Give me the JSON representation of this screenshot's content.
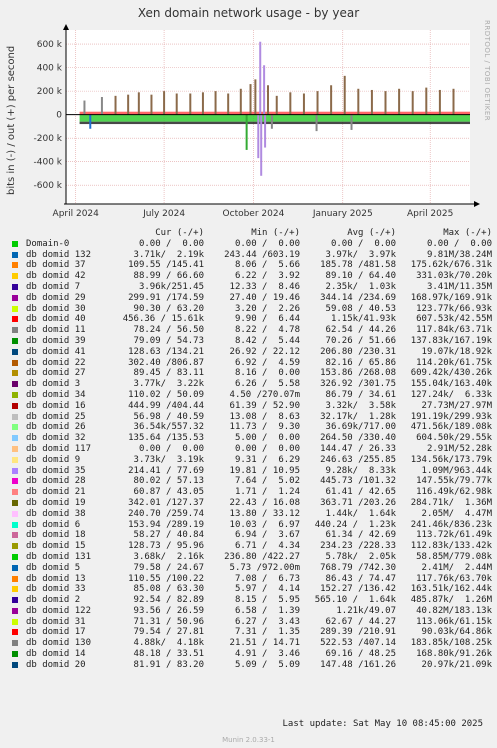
{
  "title": "Xen domain network usage - by year",
  "side_label": "RRDTOOL / TOBI OETIKER",
  "footer": {
    "last_update": "Last update:  Sat May 10 08:45:00 2025",
    "munin": "Munin 2.0.33-1"
  },
  "legend_header": {
    "cur": "Cur (-/+)",
    "min": "Min (-/+)",
    "avg": "Avg (-/+)",
    "max": "Max (-/+)"
  },
  "chart_data": {
    "type": "area",
    "ylabel": "bits in (-) / out (+) per second",
    "yticks": [
      {
        "value": 600000,
        "label": "600 k"
      },
      {
        "value": 400000,
        "label": "400 k"
      },
      {
        "value": 200000,
        "label": "200 k"
      },
      {
        "value": 0,
        "label": "0"
      },
      {
        "value": -200000,
        "label": "-200 k"
      },
      {
        "value": -400000,
        "label": "-400 k"
      },
      {
        "value": -600000,
        "label": "-600 k"
      }
    ],
    "ylim": [
      -760000,
      720000
    ],
    "xticks": [
      {
        "value": "2024-04-01",
        "label": "April 2024"
      },
      {
        "value": "2024-07-01",
        "label": "July 2024"
      },
      {
        "value": "2024-10-01",
        "label": "October 2024"
      },
      {
        "value": "2025-01-01",
        "label": "January 2025"
      },
      {
        "value": "2025-04-01",
        "label": "April 2025"
      }
    ],
    "xlim": [
      "2024-03-22",
      "2025-05-12"
    ],
    "grid": true,
    "spikes_out": [
      {
        "date": "2024-04-10",
        "value": 120000,
        "color": "#888888"
      },
      {
        "date": "2024-04-28",
        "value": 150000,
        "color": "#888888"
      },
      {
        "date": "2024-05-12",
        "value": 160000,
        "color": "#8b6a4a"
      },
      {
        "date": "2024-05-25",
        "value": 170000,
        "color": "#8b6a4a"
      },
      {
        "date": "2024-06-05",
        "value": 190000,
        "color": "#8b6a4a"
      },
      {
        "date": "2024-06-18",
        "value": 170000,
        "color": "#8b6a4a"
      },
      {
        "date": "2024-07-01",
        "value": 200000,
        "color": "#8b6a4a"
      },
      {
        "date": "2024-07-14",
        "value": 180000,
        "color": "#8b6a4a"
      },
      {
        "date": "2024-07-28",
        "value": 180000,
        "color": "#8b6a4a"
      },
      {
        "date": "2024-08-10",
        "value": 190000,
        "color": "#8b6a4a"
      },
      {
        "date": "2024-08-23",
        "value": 200000,
        "color": "#8b6a4a"
      },
      {
        "date": "2024-09-05",
        "value": 180000,
        "color": "#8b6a4a"
      },
      {
        "date": "2024-09-18",
        "value": 220000,
        "color": "#8b6a4a"
      },
      {
        "date": "2024-09-28",
        "value": 260000,
        "color": "#8b6a4a"
      },
      {
        "date": "2024-10-03",
        "value": 300000,
        "color": "#8b6a4a"
      },
      {
        "date": "2024-10-08",
        "value": 620000,
        "color": "#b08be0"
      },
      {
        "date": "2024-10-12",
        "value": 420000,
        "color": "#b08be0"
      },
      {
        "date": "2024-10-16",
        "value": 250000,
        "color": "#8b6a4a"
      },
      {
        "date": "2024-10-25",
        "value": 160000,
        "color": "#8b6a4a"
      },
      {
        "date": "2024-11-08",
        "value": 190000,
        "color": "#8b6a4a"
      },
      {
        "date": "2024-11-22",
        "value": 180000,
        "color": "#8b6a4a"
      },
      {
        "date": "2024-12-06",
        "value": 200000,
        "color": "#8b6a4a"
      },
      {
        "date": "2024-12-20",
        "value": 250000,
        "color": "#8b6a4a"
      },
      {
        "date": "2025-01-03",
        "value": 330000,
        "color": "#8b6a4a"
      },
      {
        "date": "2025-01-17",
        "value": 220000,
        "color": "#8b6a4a"
      },
      {
        "date": "2025-01-31",
        "value": 210000,
        "color": "#8b6a4a"
      },
      {
        "date": "2025-02-14",
        "value": 200000,
        "color": "#8b6a4a"
      },
      {
        "date": "2025-02-28",
        "value": 220000,
        "color": "#8b6a4a"
      },
      {
        "date": "2025-03-14",
        "value": 200000,
        "color": "#8b6a4a"
      },
      {
        "date": "2025-03-28",
        "value": 230000,
        "color": "#8b6a4a"
      },
      {
        "date": "2025-04-11",
        "value": 210000,
        "color": "#8b6a4a"
      },
      {
        "date": "2025-04-25",
        "value": 220000,
        "color": "#8b6a4a"
      }
    ],
    "spikes_in": [
      {
        "date": "2024-04-16",
        "value": -120000,
        "color": "#1f6fd0"
      },
      {
        "date": "2024-09-24",
        "value": -300000,
        "color": "#33aa33"
      },
      {
        "date": "2024-10-06",
        "value": -370000,
        "color": "#b08be0"
      },
      {
        "date": "2024-10-09",
        "value": -520000,
        "color": "#b08be0"
      },
      {
        "date": "2024-10-13",
        "value": -280000,
        "color": "#b08be0"
      },
      {
        "date": "2024-10-20",
        "value": -120000,
        "color": "#888888"
      },
      {
        "date": "2024-12-05",
        "value": -140000,
        "color": "#888888"
      },
      {
        "date": "2025-01-10",
        "value": -130000,
        "color": "#888888"
      }
    ]
  },
  "legend": [
    {
      "name": "Domain-0",
      "color": "#00cc00",
      "cur": "0.00 /  0.00",
      "min": "0.00 /  0.00",
      "avg": "0.00 /  0.00",
      "max": "0.00 /  0.00"
    },
    {
      "name": "db domid 132",
      "color": "#0066b3",
      "cur": "3.71k/  2.19k",
      "min": "243.44 /603.19",
      "avg": "3.97k/  3.97k",
      "max": "9.81M/38.24M"
    },
    {
      "name": "db domid 37",
      "color": "#ff8000",
      "cur": "109.55 /145.41",
      "min": "8.06 /  5.66",
      "avg": "185.78 /481.58",
      "max": "175.62k/676.31k"
    },
    {
      "name": "db domid 42",
      "color": "#ffcc00",
      "cur": "88.99 / 66.60",
      "min": "6.22 /  3.92",
      "avg": "89.10 / 64.40",
      "max": "331.03k/70.20k"
    },
    {
      "name": "db domid 7",
      "color": "#330099",
      "cur": "3.96k/251.45",
      "min": "12.33 /  8.46",
      "avg": "2.35k/  1.03k",
      "max": "3.41M/11.35M"
    },
    {
      "name": "db domid 29",
      "color": "#990099",
      "cur": "299.91 /174.59",
      "min": "27.40 / 19.46",
      "avg": "344.14 /234.69",
      "max": "168.97k/169.91k"
    },
    {
      "name": "db domid 30",
      "color": "#ccff00",
      "cur": "90.30 / 63.20",
      "min": "3.20 /  2.26",
      "avg": "59.08 / 40.53",
      "max": "123.77k/66.93k"
    },
    {
      "name": "db domid 40",
      "color": "#ff0000",
      "cur": "456.36 / 15.61k",
      "min": "9.90 /  6.44",
      "avg": "1.15k/41.93k",
      "max": "607.53k/42.55M"
    },
    {
      "name": "db domid 11",
      "color": "#808080",
      "cur": "78.24 / 56.50",
      "min": "8.22 /  4.78",
      "avg": "62.54 / 44.26",
      "max": "117.84k/63.71k"
    },
    {
      "name": "db domid 39",
      "color": "#008f00",
      "cur": "79.09 / 54.73",
      "min": "8.42 /  5.44",
      "avg": "70.26 / 51.66",
      "max": "137.83k/167.19k"
    },
    {
      "name": "db domid 41",
      "color": "#00487d",
      "cur": "128.63 /134.21",
      "min": "26.92 / 22.12",
      "avg": "206.80 /230.31",
      "max": "19.07k/18.92k"
    },
    {
      "name": "db domid 22",
      "color": "#b35a00",
      "cur": "302.40 /806.87",
      "min": "6.92 /  4.59",
      "avg": "82.16 / 65.86",
      "max": "114.20k/61.75k"
    },
    {
      "name": "db domid 27",
      "color": "#b38f00",
      "cur": "89.45 / 83.11",
      "min": "8.16 /  0.00",
      "avg": "153.86 /268.08",
      "max": "609.42k/430.26k"
    },
    {
      "name": "db domid 3",
      "color": "#6b006b",
      "cur": "3.77k/  3.22k",
      "min": "6.26 /  5.58",
      "avg": "326.92 /301.75",
      "max": "155.04k/163.40k"
    },
    {
      "name": "db domid 34",
      "color": "#8fb300",
      "cur": "110.02 / 50.09",
      "min": "4.50 /270.07m",
      "avg": "86.79 / 34.61",
      "max": "127.24k/  6.33k"
    },
    {
      "name": "db domid 16",
      "color": "#b30000",
      "cur": "444.99 /404.44",
      "min": "61.39 / 52.90",
      "avg": "3.32k/  3.58k",
      "max": "27.73M/27.97M"
    },
    {
      "name": "db domid 25",
      "color": "#bebebe",
      "cur": "56.98 / 40.59",
      "min": "13.08 /  8.63",
      "avg": "32.17k/  1.28k",
      "max": "191.19k/299.93k"
    },
    {
      "name": "db domid 26",
      "color": "#80ff80",
      "cur": "36.54k/557.32",
      "min": "11.73 /  9.30",
      "avg": "36.69k/717.00",
      "max": "471.56k/189.08k"
    },
    {
      "name": "db domid 32",
      "color": "#80c9ff",
      "cur": "135.64 /135.53",
      "min": "5.00 /  0.00",
      "avg": "264.50 /330.40",
      "max": "604.50k/29.55k"
    },
    {
      "name": "db domid 117",
      "color": "#ffc080",
      "cur": "0.00 /  0.00",
      "min": "0.00 /  0.00",
      "avg": "144.47 / 26.33",
      "max": "2.91M/52.28k"
    },
    {
      "name": "db domid 9",
      "color": "#ffe680",
      "cur": "3.73k/  3.19k",
      "min": "9.31 /  6.29",
      "avg": "246.63 /255.85",
      "max": "134.56k/173.79k"
    },
    {
      "name": "db domid 35",
      "color": "#aa80ff",
      "cur": "214.41 / 77.69",
      "min": "19.81 / 10.95",
      "avg": "9.28k/  8.33k",
      "max": "1.09M/963.44k"
    },
    {
      "name": "db domid 28",
      "color": "#ee00cc",
      "cur": "80.02 / 57.13",
      "min": "7.64 /  5.02",
      "avg": "445.73 /101.32",
      "max": "147.55k/79.77k"
    },
    {
      "name": "db domid 21",
      "color": "#ff8080",
      "cur": "60.87 / 43.05",
      "min": "1.71 /  1.24",
      "avg": "61.41 / 42.65",
      "max": "116.49k/62.98k"
    },
    {
      "name": "db domid 19",
      "color": "#666600",
      "cur": "342.01 /127.37",
      "min": "22.43 / 16.08",
      "avg": "363.71 /203.26",
      "max": "284.71k/  1.36M"
    },
    {
      "name": "db domid 38",
      "color": "#ffbfff",
      "cur": "240.70 /259.74",
      "min": "13.80 / 33.12",
      "avg": "1.44k/  1.64k",
      "max": "2.05M/  4.47M"
    },
    {
      "name": "db domid 6",
      "color": "#00ffcc",
      "cur": "153.94 /289.19",
      "min": "10.03 /  6.97",
      "avg": "440.24 /  1.23k",
      "max": "241.46k/836.23k"
    },
    {
      "name": "db domid 18",
      "color": "#cc6699",
      "cur": "58.27 / 40.84",
      "min": "6.94 /  3.67",
      "avg": "61.34 / 42.69",
      "max": "113.72k/61.49k"
    },
    {
      "name": "db domid 15",
      "color": "#999900",
      "cur": "128.73 / 95.96",
      "min": "6.71 /  4.34",
      "avg": "234.23 /228.33",
      "max": "112.83k/133.42k"
    },
    {
      "name": "db domid 131",
      "color": "#00cc00",
      "cur": "3.68k/  2.16k",
      "min": "236.80 /422.27",
      "avg": "5.78k/  2.05k",
      "max": "58.85M/779.08k"
    },
    {
      "name": "db domid 5",
      "color": "#0066b3",
      "cur": "79.58 / 24.67",
      "min": "5.73 /972.00m",
      "avg": "768.79 /742.30",
      "max": "2.41M/  2.44M"
    },
    {
      "name": "db domid 13",
      "color": "#ff8000",
      "cur": "110.55 /100.22",
      "min": "7.08 /  6.73",
      "avg": "86.43 / 74.47",
      "max": "117.76k/63.70k"
    },
    {
      "name": "db domid 33",
      "color": "#ffcc00",
      "cur": "85.08 / 63.30",
      "min": "5.97 /  4.14",
      "avg": "152.27 /136.42",
      "max": "163.51k/162.44k"
    },
    {
      "name": "db domid 2",
      "color": "#330099",
      "cur": "92.54 / 82.89",
      "min": "8.15 /  5.95",
      "avg": "565.10 /  1.64k",
      "max": "485.87k/  1.26M"
    },
    {
      "name": "db domid 122",
      "color": "#990099",
      "cur": "93.56 / 26.59",
      "min": "6.58 /  1.39",
      "avg": "1.21k/49.07",
      "max": "40.82M/183.13k"
    },
    {
      "name": "db domid 31",
      "color": "#ccff00",
      "cur": "71.31 / 50.96",
      "min": "6.27 /  3.43",
      "avg": "62.67 / 44.27",
      "max": "113.06k/61.15k"
    },
    {
      "name": "db domid 17",
      "color": "#ff0000",
      "cur": "79.54 / 27.81",
      "min": "7.31 /  1.35",
      "avg": "289.39 /210.91",
      "max": "90.03k/64.86k"
    },
    {
      "name": "db domid 130",
      "color": "#808080",
      "cur": "4.88k/  4.18k",
      "min": "21.51 / 14.71",
      "avg": "522.53 /407.14",
      "max": "183.85k/108.25k"
    },
    {
      "name": "db domid 14",
      "color": "#008f00",
      "cur": "48.18 / 33.51",
      "min": "4.91 /  3.46",
      "avg": "69.16 / 48.25",
      "max": "168.80k/91.26k"
    },
    {
      "name": "db domid 20",
      "color": "#00487d",
      "cur": "81.91 / 83.20",
      "min": "5.09 /  5.09",
      "avg": "147.48 /161.26",
      "max": "20.97k/21.09k"
    }
  ]
}
